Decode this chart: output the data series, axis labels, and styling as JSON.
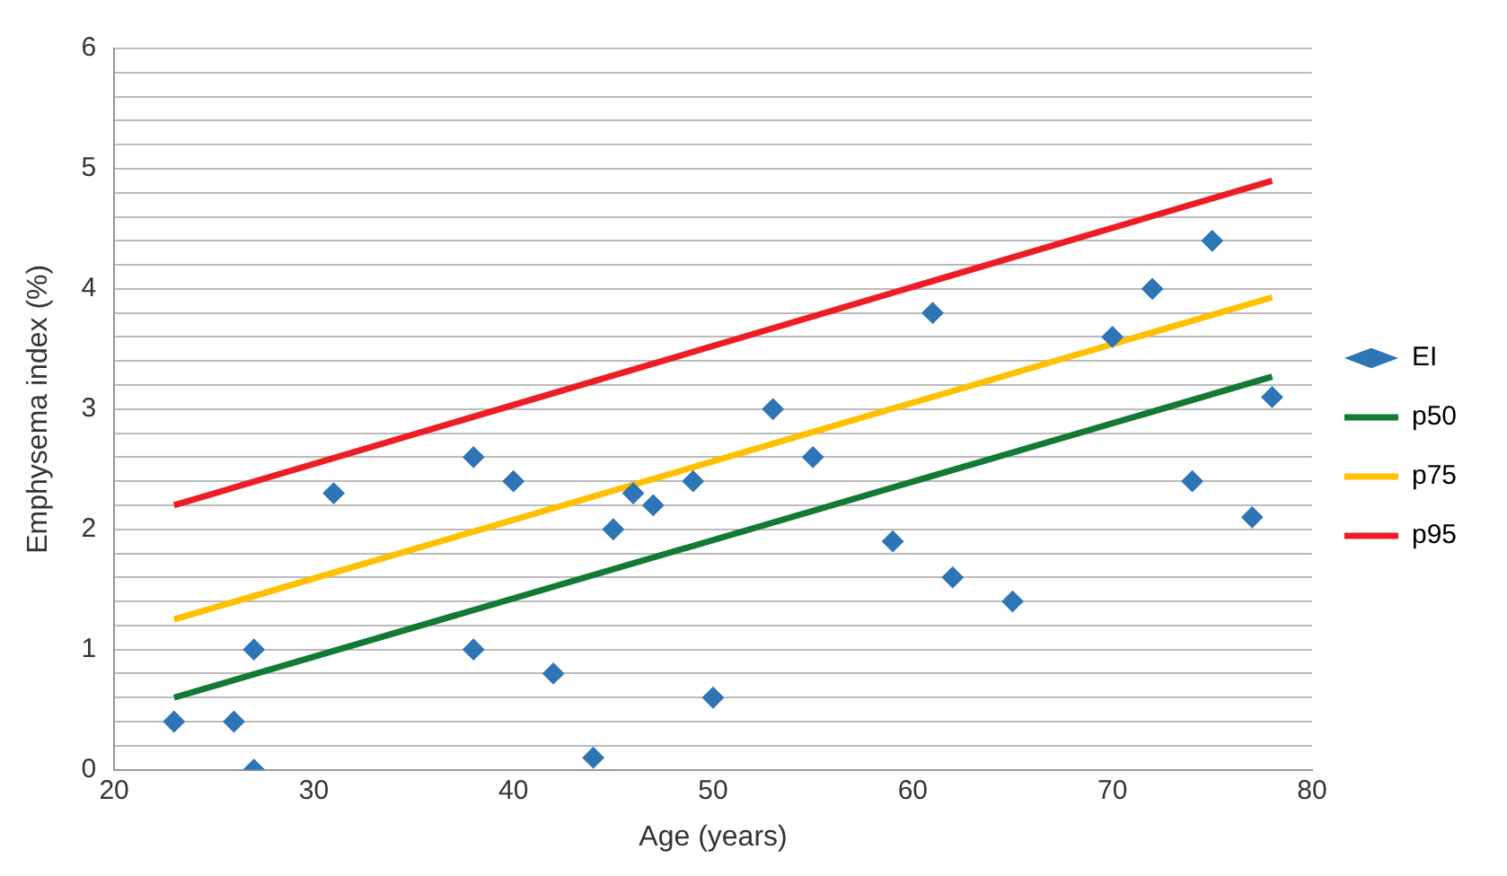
{
  "chart_data": {
    "type": "scatter",
    "xlabel": "Age (years)",
    "ylabel": "Emphysema index (%)",
    "xlim": [
      20,
      80
    ],
    "xticks": [
      20,
      30,
      40,
      50,
      60,
      70,
      80
    ],
    "ylim": [
      0,
      6
    ],
    "yticks": [
      0,
      {
        "value": 0.2,
        "label": null
      },
      {
        "value": 0.4,
        "label": null
      },
      {
        "value": 0.6,
        "label": null
      },
      {
        "value": 0.8,
        "label": null
      },
      1,
      {
        "value": 1.2,
        "label": null
      },
      {
        "value": 1.4,
        "label": null
      },
      {
        "value": 1.6,
        "label": null
      },
      {
        "value": 1.8,
        "label": null
      },
      2,
      {
        "value": 2.2,
        "label": null
      },
      {
        "value": 2.4,
        "label": null
      },
      {
        "value": 2.6,
        "label": null
      },
      {
        "value": 2.8,
        "label": null
      },
      3,
      {
        "value": 3.2,
        "label": null
      },
      {
        "value": 3.4,
        "label": null
      },
      {
        "value": 3.6,
        "label": null
      },
      {
        "value": 3.8,
        "label": null
      },
      4,
      {
        "value": 4.2,
        "label": null
      },
      {
        "value": 4.4,
        "label": null
      },
      {
        "value": 4.6,
        "label": null
      },
      {
        "value": 4.8,
        "label": null
      },
      5,
      {
        "value": 5.2,
        "label": null
      },
      {
        "value": 5.4,
        "label": null
      },
      {
        "value": 5.6,
        "label": null
      },
      {
        "value": 5.8,
        "label": null
      },
      6
    ],
    "grid": "y",
    "legend": "right",
    "series": [
      {
        "name": "EI",
        "type": "scatter",
        "marker": "diamond",
        "color": "#2e75b6",
        "x": [
          23,
          26,
          27,
          27,
          31,
          38,
          38,
          40,
          42,
          44,
          45,
          46,
          47,
          49,
          50,
          53,
          55,
          59,
          61,
          62,
          65,
          70,
          72,
          74,
          75,
          77,
          78
        ],
        "values": [
          0.4,
          0.4,
          1.0,
          0,
          2.3,
          2.6,
          1.0,
          2.4,
          0.8,
          0.1,
          2.0,
          2.3,
          2.2,
          2.4,
          0.6,
          3.0,
          2.6,
          1.9,
          3.8,
          1.6,
          1.4,
          3.6,
          4.0,
          2.4,
          4.4,
          2.1,
          3.1
        ]
      },
      {
        "name": "p50",
        "type": "line",
        "marker": "none",
        "color": "#127a34",
        "x": [
          23,
          78
        ],
        "values": [
          0.6,
          3.27
        ]
      },
      {
        "name": "p75",
        "type": "line",
        "marker": "none",
        "color": "#ffc000",
        "x": [
          23,
          78
        ],
        "values": [
          1.25,
          3.93
        ]
      },
      {
        "name": "p95",
        "type": "line",
        "marker": "none",
        "color": "#ee1c25",
        "x": [
          23,
          78
        ],
        "values": [
          2.2,
          4.9
        ]
      }
    ]
  }
}
